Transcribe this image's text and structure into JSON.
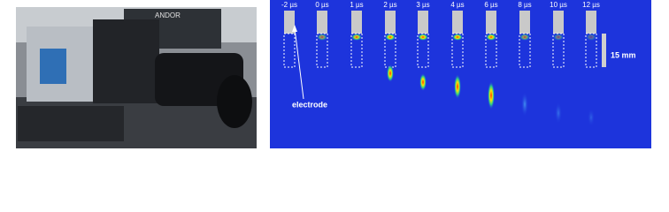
{
  "photo": {
    "brand_label": "ANDOR"
  },
  "sequence": {
    "time_labels": [
      "-2 µs",
      "0 µs",
      "1 µs",
      "2 µs",
      "3 µs",
      "4 µs",
      "6 µs",
      "8 µs",
      "10 µs",
      "12 µs"
    ],
    "electrode_label": "electrode",
    "scale_label": "15 mm"
  }
}
